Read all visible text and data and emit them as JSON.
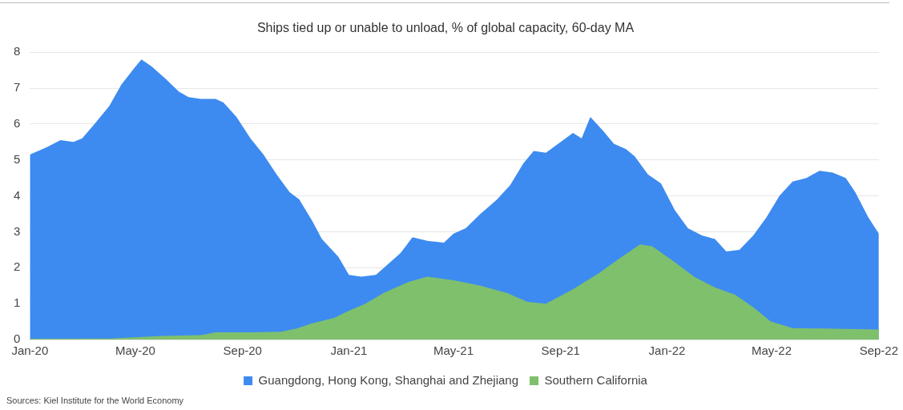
{
  "chart_data": {
    "type": "area",
    "title": "Ships tied up or unable to unload, % of global capacity, 60-day MA",
    "xlim": [
      "2020-01-01",
      "2022-09-01"
    ],
    "xticks": [
      {
        "value": "2020-01-01",
        "label": "Jan-20"
      },
      {
        "value": "2020-05-01",
        "label": "May-20"
      },
      {
        "value": "2020-09-01",
        "label": "Sep-20"
      },
      {
        "value": "2021-01-01",
        "label": "Jan-21"
      },
      {
        "value": "2021-05-01",
        "label": "May-21"
      },
      {
        "value": "2021-09-01",
        "label": "Sep-21"
      },
      {
        "value": "2022-01-01",
        "label": "Jan-22"
      },
      {
        "value": "2022-05-01",
        "label": "May-22"
      },
      {
        "value": "2022-09-01",
        "label": "Sep-22"
      }
    ],
    "ylim": [
      0,
      8
    ],
    "yticks": [
      0,
      1,
      2,
      3,
      4,
      5,
      6,
      7,
      8
    ],
    "grid": "y",
    "legend": "bottom",
    "series": [
      {
        "name": "Guangdong, Hong Kong, Shanghai and Zhejiang",
        "color": "#3d8bf0",
        "x": [
          "2020-01-01",
          "2020-01-20",
          "2020-02-05",
          "2020-02-20",
          "2020-03-01",
          "2020-03-15",
          "2020-04-01",
          "2020-04-15",
          "2020-05-01",
          "2020-05-08",
          "2020-05-20",
          "2020-06-05",
          "2020-06-20",
          "2020-07-01",
          "2020-07-15",
          "2020-08-01",
          "2020-08-10",
          "2020-08-25",
          "2020-09-10",
          "2020-09-25",
          "2020-10-10",
          "2020-10-25",
          "2020-11-05",
          "2020-11-20",
          "2020-12-01",
          "2020-12-20",
          "2021-01-01",
          "2021-01-15",
          "2021-02-01",
          "2021-02-15",
          "2021-03-01",
          "2021-03-15",
          "2021-04-01",
          "2021-04-20",
          "2021-05-01",
          "2021-05-15",
          "2021-06-01",
          "2021-06-20",
          "2021-07-05",
          "2021-07-20",
          "2021-08-01",
          "2021-08-15",
          "2021-09-01",
          "2021-09-15",
          "2021-09-25",
          "2021-10-05",
          "2021-10-20",
          "2021-11-01",
          "2021-11-15",
          "2021-11-25",
          "2021-12-10",
          "2021-12-25",
          "2022-01-10",
          "2022-01-25",
          "2022-02-10",
          "2022-02-25",
          "2022-03-10",
          "2022-03-25",
          "2022-04-10",
          "2022-04-25",
          "2022-05-10",
          "2022-05-25",
          "2022-06-10",
          "2022-06-25",
          "2022-07-10",
          "2022-07-25",
          "2022-08-05",
          "2022-08-20",
          "2022-09-01"
        ],
        "values": [
          5.15,
          5.35,
          5.55,
          5.5,
          5.6,
          6.0,
          6.5,
          7.1,
          7.6,
          7.8,
          7.6,
          7.25,
          6.9,
          6.75,
          6.7,
          6.7,
          6.6,
          6.2,
          5.6,
          5.15,
          4.6,
          4.1,
          3.9,
          3.3,
          2.8,
          2.3,
          1.8,
          1.75,
          1.8,
          2.1,
          2.4,
          2.85,
          2.75,
          2.7,
          2.95,
          3.1,
          3.5,
          3.9,
          4.3,
          4.9,
          5.25,
          5.2,
          5.5,
          5.75,
          5.6,
          6.2,
          5.8,
          5.45,
          5.3,
          5.1,
          4.6,
          4.35,
          3.6,
          3.1,
          2.9,
          2.8,
          2.45,
          2.5,
          2.9,
          3.4,
          4.0,
          4.4,
          4.5,
          4.7,
          4.65,
          4.5,
          4.1,
          3.4,
          2.95
        ]
      },
      {
        "name": "Southern California",
        "color": "#7fc06c",
        "x": [
          "2020-01-01",
          "2020-04-01",
          "2020-06-01",
          "2020-07-15",
          "2020-08-01",
          "2020-09-15",
          "2020-10-15",
          "2020-11-01",
          "2020-11-20",
          "2020-12-15",
          "2021-01-01",
          "2021-01-20",
          "2021-02-10",
          "2021-03-10",
          "2021-04-01",
          "2021-05-01",
          "2021-06-01",
          "2021-07-01",
          "2021-07-25",
          "2021-08-15",
          "2021-09-15",
          "2021-10-15",
          "2021-11-10",
          "2021-12-01",
          "2021-12-15",
          "2022-01-10",
          "2022-02-01",
          "2022-02-25",
          "2022-03-20",
          "2022-04-10",
          "2022-04-30",
          "2022-05-25",
          "2022-09-01"
        ],
        "values": [
          0.02,
          0.03,
          0.1,
          0.12,
          0.2,
          0.2,
          0.22,
          0.3,
          0.45,
          0.6,
          0.8,
          1.0,
          1.3,
          1.6,
          1.75,
          1.65,
          1.5,
          1.3,
          1.05,
          1.0,
          1.4,
          1.85,
          2.3,
          2.65,
          2.6,
          2.15,
          1.75,
          1.45,
          1.25,
          0.9,
          0.5,
          0.32,
          0.28
        ]
      }
    ],
    "annotations": [
      "Sources: Kiel Institute for the World Economy"
    ]
  }
}
